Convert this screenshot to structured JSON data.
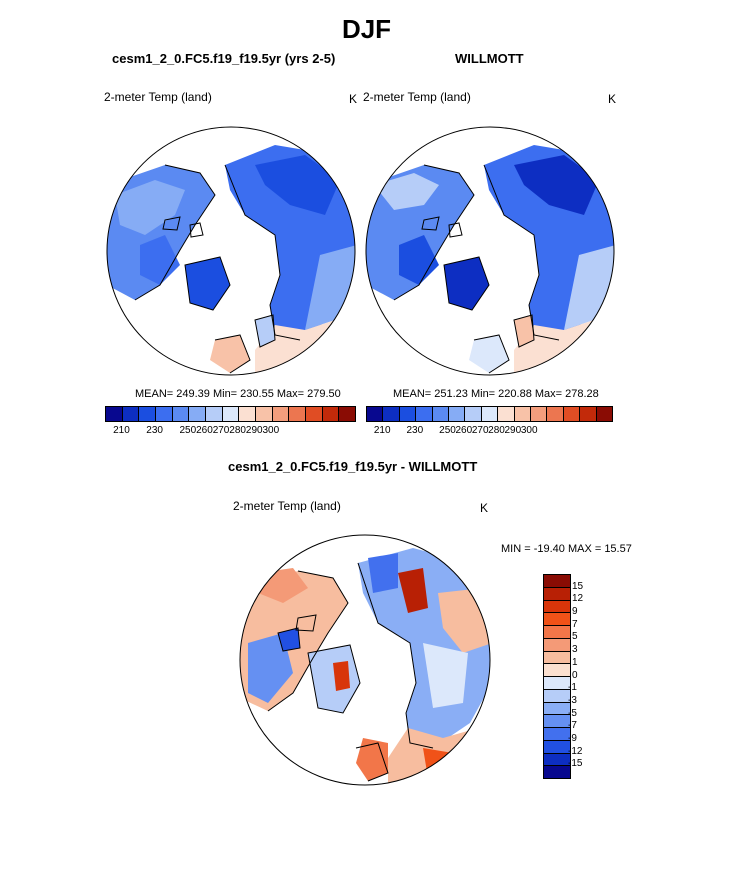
{
  "title": "DJF",
  "panels": [
    {
      "title": "cesm1_2_0.FC5.f19_f19.5yr (yrs 2-5)",
      "variable": "2-meter Temp (land)",
      "units": "K",
      "stats": "MEAN= 249.39  Min= 230.55  Max= 279.50"
    },
    {
      "title": "WILLMOTT",
      "variable": "2-meter Temp (land)",
      "units": "K",
      "stats": "MEAN= 251.23  Min= 220.88  Max= 278.28"
    },
    {
      "title": "cesm1_2_0.FC5.f19_f19.5yr - WILLMOTT",
      "variable": "2-meter Temp (land)",
      "units": "K",
      "stats": "MIN = -19.40 MAX =  15.57"
    }
  ],
  "colorbars": {
    "abs": {
      "colors": [
        "#08088f",
        "#0d2ec2",
        "#1b4ee0",
        "#3c6ef0",
        "#5b8af2",
        "#86acf5",
        "#b6cdf8",
        "#dce8fb",
        "#fbe0d2",
        "#f8c2a8",
        "#f39e7d",
        "#ec7650",
        "#e04d24",
        "#c22a0a",
        "#8a0c04"
      ],
      "ticks": [
        "210",
        "230",
        "250",
        "260",
        "270",
        "280",
        "290",
        "300"
      ]
    },
    "diff": {
      "colors": [
        "#8a0c04",
        "#b82005",
        "#d8350a",
        "#f05218",
        "#f27649",
        "#f49a77",
        "#f7bd9f",
        "#fbe0d0",
        "#dce8fb",
        "#b6cdf8",
        "#8aaef5",
        "#6590f2",
        "#4270ee",
        "#2150e2",
        "#0d2ec2",
        "#08088f"
      ],
      "ticks": [
        "15",
        "12",
        "9",
        "7",
        "5",
        "3",
        "1",
        "0",
        "-1",
        "-3",
        "-5",
        "-7",
        "-9",
        "-12",
        "-15"
      ]
    }
  }
}
